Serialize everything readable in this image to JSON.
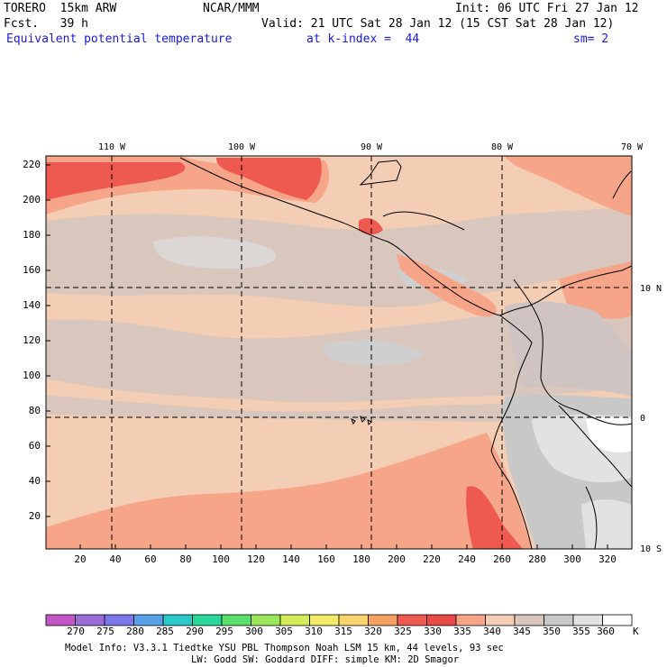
{
  "header": {
    "model": "TORERO  15km ARW",
    "org": "NCAR/MMM",
    "init": "Init: 06 UTC Fri 27 Jan 12",
    "fcst": "Fcst.   39 h",
    "valid": "Valid: 21 UTC Sat 28 Jan 12 (15 CST Sat 28 Jan 12)",
    "field": "Equivalent potential temperature",
    "level": "at k-index =  44",
    "smooth": "sm= 2"
  },
  "map": {
    "lon_labels": [
      "110 W",
      "100 W",
      "90 W",
      "80 W",
      "70 W"
    ],
    "lat_labels": [
      "10 N",
      "0",
      "10 S"
    ],
    "y_ticks": [
      "20",
      "40",
      "60",
      "80",
      "100",
      "120",
      "140",
      "160",
      "180",
      "200",
      "220"
    ],
    "x_ticks": [
      "20",
      "40",
      "60",
      "80",
      "100",
      "120",
      "140",
      "160",
      "180",
      "200",
      "220",
      "240",
      "260",
      "280",
      "300",
      "320"
    ]
  },
  "colorbar": {
    "unit": "K",
    "labels": [
      "270",
      "275",
      "280",
      "285",
      "290",
      "295",
      "300",
      "305",
      "310",
      "315",
      "320",
      "325",
      "330",
      "335",
      "340",
      "345",
      "350",
      "355",
      "360"
    ],
    "colors": [
      "#c455c4",
      "#9a6ed6",
      "#7a78e8",
      "#5aa0e8",
      "#2cc8c8",
      "#2cd69a",
      "#5ae06a",
      "#9ce65a",
      "#d2ec5a",
      "#f4ea6a",
      "#f8d46a",
      "#f7a064",
      "#ef5a50",
      "#e84a48",
      "#f6a588",
      "#f3cdb4",
      "#d9c6bc",
      "#c8c8c8",
      "#e2e2e2",
      "#ffffff"
    ]
  },
  "footer": {
    "line1": "Model Info: V3.3.1    Tiedtke YSU PBL  Thompson     Noah LSM  15 km,   44 levels,   93 sec",
    "line2": "LW: Godd SW: Goddard DIFF: simple KM: 2D Smagor"
  }
}
